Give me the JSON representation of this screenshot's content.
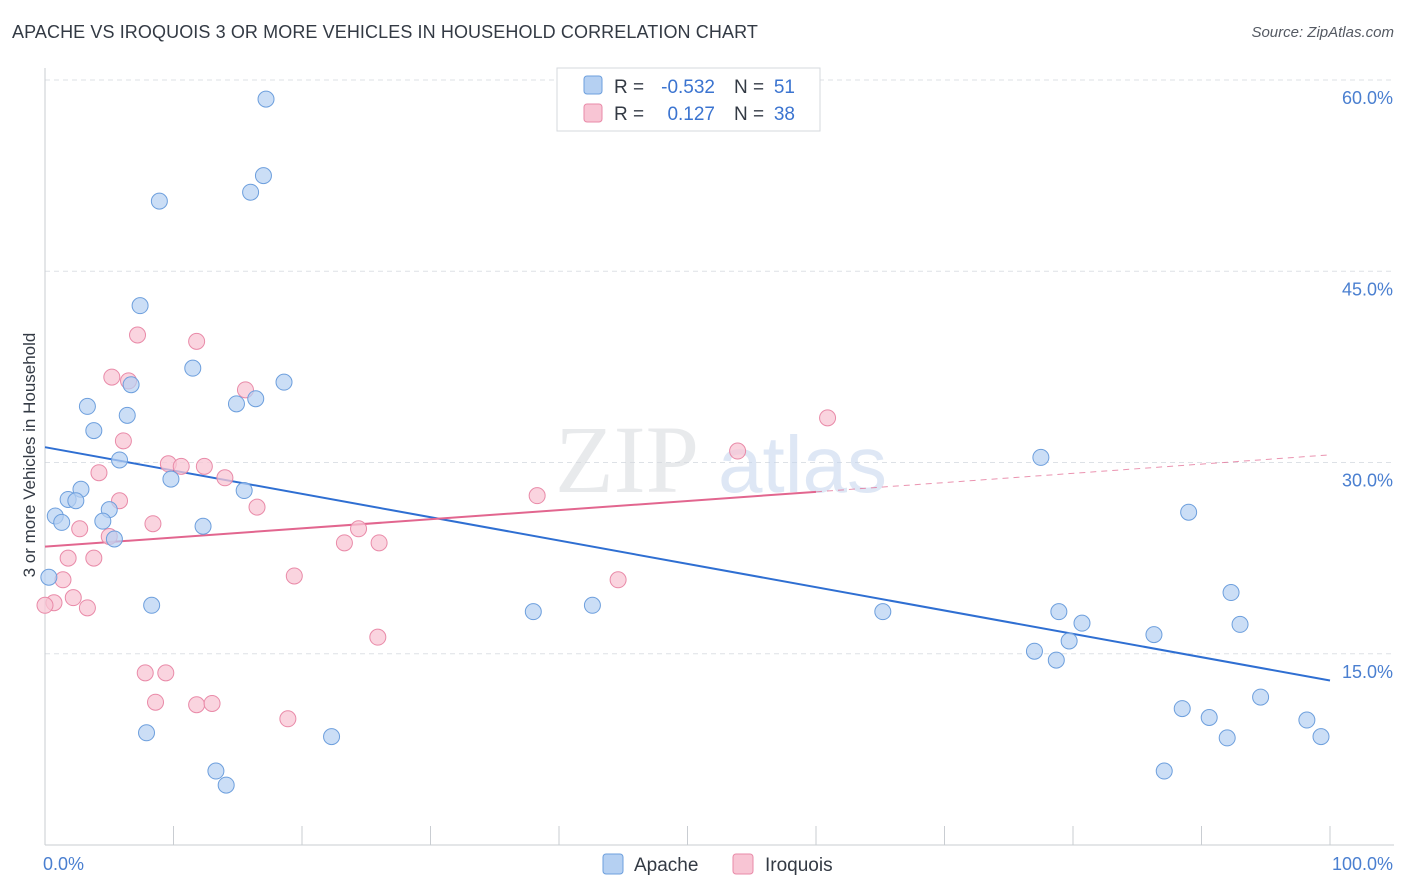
{
  "title": "APACHE VS IROQUOIS 3 OR MORE VEHICLES IN HOUSEHOLD CORRELATION CHART",
  "source": "Source: ZipAtlas.com",
  "watermark": {
    "zip": "ZIP",
    "atlas": "atlas"
  },
  "legend": {
    "r_label": "R =",
    "n_label": "N =",
    "apache": {
      "r": "-0.532",
      "n": "51"
    },
    "iroquois": {
      "r": "0.127",
      "n": "38"
    }
  },
  "colors": {
    "apache_fill": "#b5d0f2",
    "apache_stroke": "#6d9fdd",
    "apache_line": "#2f6fd2",
    "iroquois_fill": "#f8c5d4",
    "iroquois_stroke": "#e98aa8",
    "iroquois_line": "#e2668f",
    "grid": "#dde1e6",
    "axis_text": "#4a7fd0"
  },
  "chart_data": {
    "type": "scatter",
    "title": "APACHE VS IROQUOIS 3 OR MORE VEHICLES IN HOUSEHOLD CORRELATION CHART",
    "xlabel": "",
    "ylabel": "3 or more Vehicles in Household",
    "xlim": [
      0,
      100
    ],
    "ylim": [
      0,
      60
    ],
    "x_tick_labels": [
      "0.0%",
      "100.0%"
    ],
    "y_ticks": [
      15,
      30,
      45,
      60
    ],
    "y_tick_labels": [
      "15.0%",
      "30.0%",
      "45.0%",
      "60.0%"
    ],
    "legend_bottom": [
      "Apache",
      "Iroquois"
    ],
    "series": [
      {
        "name": "Apache",
        "r": -0.532,
        "n": 51,
        "trend": {
          "x0": 0,
          "y0": 31.2,
          "x1": 100,
          "y1": 12.9
        },
        "points": [
          [
            17.2,
            58.5
          ],
          [
            17.0,
            52.5
          ],
          [
            16.0,
            51.2
          ],
          [
            8.9,
            50.5
          ],
          [
            7.4,
            42.3
          ],
          [
            11.5,
            37.4
          ],
          [
            18.6,
            36.3
          ],
          [
            6.7,
            36.1
          ],
          [
            16.4,
            35.0
          ],
          [
            14.9,
            34.6
          ],
          [
            3.3,
            34.4
          ],
          [
            6.4,
            33.7
          ],
          [
            3.8,
            32.5
          ],
          [
            5.8,
            30.2
          ],
          [
            9.8,
            28.7
          ],
          [
            15.5,
            27.8
          ],
          [
            2.8,
            27.9
          ],
          [
            1.8,
            27.1
          ],
          [
            2.4,
            27.0
          ],
          [
            5.0,
            26.3
          ],
          [
            0.8,
            25.8
          ],
          [
            1.3,
            25.3
          ],
          [
            4.5,
            25.4
          ],
          [
            12.3,
            25.0
          ],
          [
            5.4,
            24.0
          ],
          [
            0.3,
            21.0
          ],
          [
            8.3,
            18.8
          ],
          [
            38.0,
            18.3
          ],
          [
            42.6,
            18.8
          ],
          [
            65.2,
            18.3
          ],
          [
            77.5,
            30.4
          ],
          [
            89.0,
            26.1
          ],
          [
            78.9,
            18.3
          ],
          [
            80.7,
            17.4
          ],
          [
            79.7,
            16.0
          ],
          [
            86.3,
            16.5
          ],
          [
            92.3,
            19.8
          ],
          [
            93.0,
            17.3
          ],
          [
            77.0,
            15.2
          ],
          [
            78.7,
            14.5
          ],
          [
            94.6,
            11.6
          ],
          [
            88.5,
            10.7
          ],
          [
            90.6,
            10.0
          ],
          [
            92.0,
            8.4
          ],
          [
            98.2,
            9.8
          ],
          [
            99.3,
            8.5
          ],
          [
            22.3,
            8.5
          ],
          [
            7.9,
            8.8
          ],
          [
            13.3,
            5.8
          ],
          [
            14.1,
            4.7
          ],
          [
            87.1,
            5.8
          ]
        ]
      },
      {
        "name": "Iroquois",
        "r": 0.127,
        "n": 38,
        "trend_solid": {
          "x0": 0,
          "y0": 23.4,
          "x1": 60,
          "y1": 27.7
        },
        "trend_dashed": {
          "x0": 60,
          "y0": 27.7,
          "x1": 100,
          "y1": 30.6
        },
        "points": [
          [
            7.2,
            40.0
          ],
          [
            11.8,
            39.5
          ],
          [
            5.2,
            36.7
          ],
          [
            6.5,
            36.4
          ],
          [
            15.6,
            35.7
          ],
          [
            60.9,
            33.5
          ],
          [
            6.1,
            31.7
          ],
          [
            53.9,
            30.9
          ],
          [
            9.6,
            29.9
          ],
          [
            10.6,
            29.7
          ],
          [
            12.4,
            29.7
          ],
          [
            4.2,
            29.2
          ],
          [
            14.0,
            28.8
          ],
          [
            38.3,
            27.4
          ],
          [
            5.8,
            27.0
          ],
          [
            16.5,
            26.5
          ],
          [
            8.4,
            25.2
          ],
          [
            2.7,
            24.8
          ],
          [
            24.4,
            24.8
          ],
          [
            5.0,
            24.2
          ],
          [
            23.3,
            23.7
          ],
          [
            26.0,
            23.7
          ],
          [
            1.8,
            22.5
          ],
          [
            3.8,
            22.5
          ],
          [
            19.4,
            21.1
          ],
          [
            44.6,
            20.8
          ],
          [
            1.4,
            20.8
          ],
          [
            2.2,
            19.4
          ],
          [
            0.7,
            19.0
          ],
          [
            3.3,
            18.6
          ],
          [
            0.0,
            18.8
          ],
          [
            25.9,
            16.3
          ],
          [
            7.8,
            13.5
          ],
          [
            9.4,
            13.5
          ],
          [
            8.6,
            11.2
          ],
          [
            11.8,
            11.0
          ],
          [
            13.0,
            11.1
          ],
          [
            18.9,
            9.9
          ]
        ]
      }
    ]
  }
}
